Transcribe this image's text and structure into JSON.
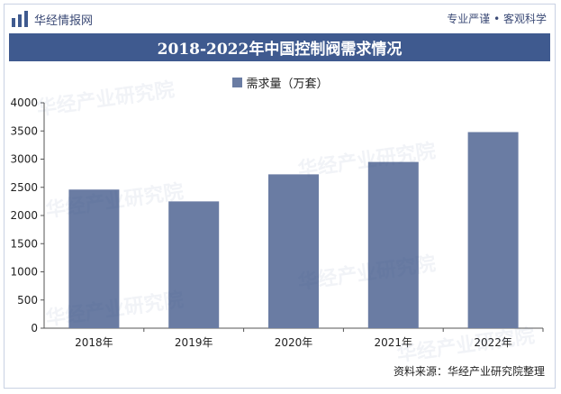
{
  "header": {
    "brand_name": "华经情报网",
    "slogan": "专业严谨 • 客观科学",
    "logo_icon": "bar-chart-logo-icon"
  },
  "title": "2018-2022年中国控制阀需求情况",
  "source": "资料来源：华经产业研究院整理",
  "watermark": "华经产业研究院",
  "colors": {
    "bar": "#6a7ca3",
    "title_bg": "#3f5a8f",
    "brand": "#3b4a76"
  },
  "chart_data": {
    "type": "bar",
    "categories": [
      "2018年",
      "2019年",
      "2020年",
      "2021年",
      "2022年"
    ],
    "series": [
      {
        "name": "需求量（万套）",
        "values": [
          2460,
          2250,
          2730,
          2950,
          3480
        ]
      }
    ],
    "ylim": [
      0,
      4000
    ],
    "yticks": [
      0,
      500,
      1000,
      1500,
      2000,
      2500,
      3000,
      3500,
      4000
    ],
    "grid": false,
    "legend_position": "top-center"
  }
}
